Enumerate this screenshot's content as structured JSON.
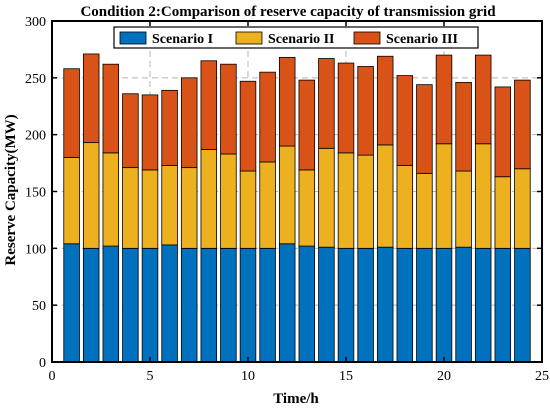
{
  "chart_data": {
    "type": "bar",
    "stacked": true,
    "title": "Condition 2:Comparison of reserve capacity of transmission grid",
    "xlabel": "Time/h",
    "ylabel": "Reserve Capacity(MW)",
    "xlim": [
      0,
      25
    ],
    "ylim": [
      0,
      300
    ],
    "xticks": [
      0,
      5,
      10,
      15,
      20,
      25
    ],
    "yticks": [
      0,
      50,
      100,
      150,
      200,
      250,
      300
    ],
    "grid": true,
    "legend_position": "top",
    "x": [
      1,
      2,
      3,
      4,
      5,
      6,
      7,
      8,
      9,
      10,
      11,
      12,
      13,
      14,
      15,
      16,
      17,
      18,
      19,
      20,
      21,
      22,
      23,
      24
    ],
    "series": [
      {
        "name": "Scenario I",
        "color": "#0072BD",
        "values": [
          104,
          100,
          102,
          100,
          100,
          103,
          100,
          100,
          100,
          100,
          100,
          104,
          102,
          101,
          100,
          100,
          101,
          100,
          100,
          100,
          101,
          100,
          100,
          100
        ]
      },
      {
        "name": "Scenario II",
        "color": "#EDB120",
        "values": [
          76,
          93,
          82,
          71,
          69,
          70,
          71,
          87,
          83,
          68,
          76,
          86,
          67,
          87,
          84,
          82,
          90,
          73,
          66,
          92,
          67,
          92,
          63,
          70
        ]
      },
      {
        "name": "Scenario III",
        "color": "#D95319",
        "values": [
          78,
          78,
          78,
          65,
          66,
          66,
          79,
          78,
          79,
          79,
          79,
          78,
          79,
          79,
          79,
          78,
          78,
          79,
          78,
          78,
          78,
          78,
          79,
          78
        ]
      }
    ]
  }
}
